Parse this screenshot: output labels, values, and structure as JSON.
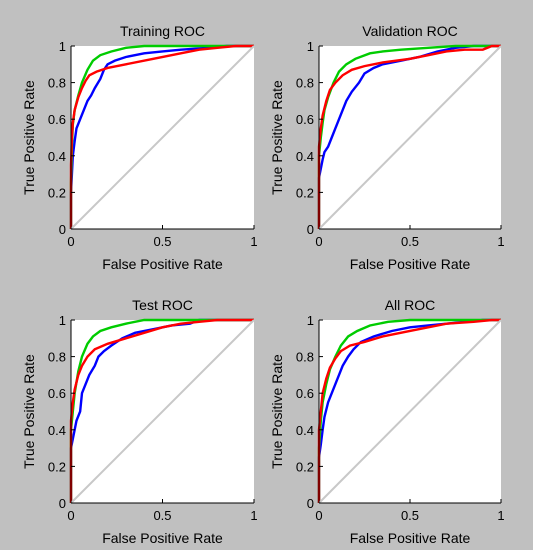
{
  "chart_data": [
    {
      "type": "line",
      "title": "Training ROC",
      "xlabel": "False Positive Rate",
      "ylabel": "True Positive Rate",
      "xlim": [
        0,
        1
      ],
      "ylim": [
        0,
        1
      ],
      "xticks": [
        "0",
        "0.5",
        "1"
      ],
      "yticks": [
        "0",
        "0.2",
        "0.4",
        "0.6",
        "0.8",
        "1"
      ],
      "grid": false,
      "series": [
        {
          "color": "#0000ff",
          "points": [
            [
              0,
              0
            ],
            [
              0,
              0.2
            ],
            [
              0.005,
              0.3
            ],
            [
              0.01,
              0.4
            ],
            [
              0.02,
              0.48
            ],
            [
              0.03,
              0.55
            ],
            [
              0.05,
              0.6
            ],
            [
              0.07,
              0.65
            ],
            [
              0.09,
              0.7
            ],
            [
              0.11,
              0.73
            ],
            [
              0.13,
              0.77
            ],
            [
              0.16,
              0.82
            ],
            [
              0.18,
              0.87
            ],
            [
              0.2,
              0.9
            ],
            [
              0.24,
              0.92
            ],
            [
              0.3,
              0.94
            ],
            [
              0.4,
              0.96
            ],
            [
              0.5,
              0.97
            ],
            [
              0.6,
              0.98
            ],
            [
              0.75,
              0.99
            ],
            [
              0.85,
              1
            ],
            [
              1,
              1
            ]
          ]
        },
        {
          "color": "#00cc00",
          "points": [
            [
              0,
              0
            ],
            [
              0,
              0.25
            ],
            [
              0.005,
              0.45
            ],
            [
              0.01,
              0.57
            ],
            [
              0.02,
              0.65
            ],
            [
              0.04,
              0.73
            ],
            [
              0.06,
              0.8
            ],
            [
              0.09,
              0.87
            ],
            [
              0.12,
              0.92
            ],
            [
              0.16,
              0.95
            ],
            [
              0.22,
              0.97
            ],
            [
              0.3,
              0.99
            ],
            [
              0.4,
              1
            ],
            [
              1,
              1
            ]
          ]
        },
        {
          "color": "#ff0000",
          "points": [
            [
              0,
              0
            ],
            [
              0,
              0.35
            ],
            [
              0.005,
              0.5
            ],
            [
              0.01,
              0.58
            ],
            [
              0.02,
              0.65
            ],
            [
              0.04,
              0.72
            ],
            [
              0.06,
              0.77
            ],
            [
              0.08,
              0.81
            ],
            [
              0.1,
              0.84
            ],
            [
              0.14,
              0.86
            ],
            [
              0.2,
              0.88
            ],
            [
              0.3,
              0.9
            ],
            [
              0.45,
              0.93
            ],
            [
              0.6,
              0.96
            ],
            [
              0.7,
              0.98
            ],
            [
              0.8,
              0.99
            ],
            [
              0.9,
              1
            ],
            [
              1,
              1
            ]
          ]
        },
        {
          "color": "#c8c8c8",
          "points": [
            [
              0,
              0
            ],
            [
              1,
              1
            ]
          ]
        }
      ]
    },
    {
      "type": "line",
      "title": "Validation ROC",
      "xlabel": "False Positive Rate",
      "ylabel": "True Positive Rate",
      "xlim": [
        0,
        1
      ],
      "ylim": [
        0,
        1
      ],
      "xticks": [
        "0",
        "0.5",
        "1"
      ],
      "yticks": [
        "0",
        "0.2",
        "0.4",
        "0.6",
        "0.8",
        "1"
      ],
      "grid": false,
      "series": [
        {
          "color": "#0000ff",
          "points": [
            [
              0,
              0
            ],
            [
              0,
              0.28
            ],
            [
              0.01,
              0.33
            ],
            [
              0.02,
              0.38
            ],
            [
              0.03,
              0.42
            ],
            [
              0.05,
              0.45
            ],
            [
              0.07,
              0.5
            ],
            [
              0.09,
              0.55
            ],
            [
              0.11,
              0.6
            ],
            [
              0.13,
              0.65
            ],
            [
              0.15,
              0.7
            ],
            [
              0.18,
              0.75
            ],
            [
              0.22,
              0.8
            ],
            [
              0.25,
              0.85
            ],
            [
              0.3,
              0.88
            ],
            [
              0.35,
              0.9
            ],
            [
              0.45,
              0.92
            ],
            [
              0.55,
              0.94
            ],
            [
              0.65,
              0.97
            ],
            [
              0.75,
              0.99
            ],
            [
              0.85,
              1
            ],
            [
              1,
              1
            ]
          ]
        },
        {
          "color": "#00cc00",
          "points": [
            [
              0,
              0
            ],
            [
              0,
              0.4
            ],
            [
              0.01,
              0.5
            ],
            [
              0.02,
              0.58
            ],
            [
              0.03,
              0.65
            ],
            [
              0.05,
              0.72
            ],
            [
              0.08,
              0.8
            ],
            [
              0.11,
              0.86
            ],
            [
              0.15,
              0.9
            ],
            [
              0.2,
              0.93
            ],
            [
              0.28,
              0.96
            ],
            [
              0.35,
              0.97
            ],
            [
              0.45,
              0.98
            ],
            [
              0.6,
              0.99
            ],
            [
              0.75,
              1
            ],
            [
              1,
              1
            ]
          ]
        },
        {
          "color": "#ff0000",
          "points": [
            [
              0,
              0
            ],
            [
              0,
              0.45
            ],
            [
              0.01,
              0.55
            ],
            [
              0.02,
              0.62
            ],
            [
              0.04,
              0.7
            ],
            [
              0.06,
              0.76
            ],
            [
              0.09,
              0.8
            ],
            [
              0.13,
              0.84
            ],
            [
              0.18,
              0.87
            ],
            [
              0.25,
              0.89
            ],
            [
              0.35,
              0.91
            ],
            [
              0.5,
              0.93
            ],
            [
              0.6,
              0.95
            ],
            [
              0.7,
              0.97
            ],
            [
              0.8,
              0.98
            ],
            [
              0.9,
              0.98
            ],
            [
              0.95,
              1
            ],
            [
              1,
              1
            ]
          ]
        },
        {
          "color": "#c8c8c8",
          "points": [
            [
              0,
              0
            ],
            [
              1,
              1
            ]
          ]
        }
      ]
    },
    {
      "type": "line",
      "title": "Test ROC",
      "xlabel": "False Positive Rate",
      "ylabel": "True Positive Rate",
      "xlim": [
        0,
        1
      ],
      "ylim": [
        0,
        1
      ],
      "xticks": [
        "0",
        "0.5",
        "1"
      ],
      "yticks": [
        "0",
        "0.2",
        "0.4",
        "0.6",
        "0.8",
        "1"
      ],
      "grid": false,
      "series": [
        {
          "color": "#0000ff",
          "points": [
            [
              0,
              0
            ],
            [
              0,
              0.3
            ],
            [
              0.01,
              0.35
            ],
            [
              0.02,
              0.4
            ],
            [
              0.03,
              0.45
            ],
            [
              0.05,
              0.5
            ],
            [
              0.06,
              0.6
            ],
            [
              0.08,
              0.65
            ],
            [
              0.1,
              0.7
            ],
            [
              0.13,
              0.75
            ],
            [
              0.15,
              0.8
            ],
            [
              0.18,
              0.83
            ],
            [
              0.22,
              0.86
            ],
            [
              0.28,
              0.9
            ],
            [
              0.35,
              0.93
            ],
            [
              0.45,
              0.95
            ],
            [
              0.55,
              0.97
            ],
            [
              0.65,
              0.98
            ],
            [
              0.7,
              1
            ],
            [
              1,
              1
            ]
          ]
        },
        {
          "color": "#00cc00",
          "points": [
            [
              0,
              0
            ],
            [
              0,
              0.4
            ],
            [
              0.01,
              0.5
            ],
            [
              0.02,
              0.6
            ],
            [
              0.04,
              0.72
            ],
            [
              0.06,
              0.8
            ],
            [
              0.09,
              0.87
            ],
            [
              0.12,
              0.91
            ],
            [
              0.16,
              0.94
            ],
            [
              0.22,
              0.96
            ],
            [
              0.3,
              0.98
            ],
            [
              0.4,
              1
            ],
            [
              1,
              1
            ]
          ]
        },
        {
          "color": "#ff0000",
          "points": [
            [
              0,
              0
            ],
            [
              0,
              0.45
            ],
            [
              0.01,
              0.55
            ],
            [
              0.02,
              0.62
            ],
            [
              0.04,
              0.7
            ],
            [
              0.06,
              0.75
            ],
            [
              0.09,
              0.8
            ],
            [
              0.13,
              0.84
            ],
            [
              0.2,
              0.87
            ],
            [
              0.3,
              0.9
            ],
            [
              0.4,
              0.93
            ],
            [
              0.5,
              0.96
            ],
            [
              0.6,
              0.98
            ],
            [
              0.7,
              0.99
            ],
            [
              0.8,
              1
            ],
            [
              1,
              1
            ]
          ]
        },
        {
          "color": "#c8c8c8",
          "points": [
            [
              0,
              0
            ],
            [
              1,
              1
            ]
          ]
        }
      ]
    },
    {
      "type": "line",
      "title": "All ROC",
      "xlabel": "False Positive Rate",
      "ylabel": "True Positive Rate",
      "xlim": [
        0,
        1
      ],
      "ylim": [
        0,
        1
      ],
      "xticks": [
        "0",
        "0.5",
        "1"
      ],
      "yticks": [
        "0",
        "0.2",
        "0.4",
        "0.6",
        "0.8",
        "1"
      ],
      "grid": false,
      "series": [
        {
          "color": "#0000ff",
          "points": [
            [
              0,
              0
            ],
            [
              0,
              0.25
            ],
            [
              0.01,
              0.32
            ],
            [
              0.02,
              0.4
            ],
            [
              0.03,
              0.47
            ],
            [
              0.05,
              0.55
            ],
            [
              0.07,
              0.6
            ],
            [
              0.09,
              0.65
            ],
            [
              0.11,
              0.7
            ],
            [
              0.13,
              0.75
            ],
            [
              0.16,
              0.8
            ],
            [
              0.19,
              0.84
            ],
            [
              0.23,
              0.88
            ],
            [
              0.3,
              0.91
            ],
            [
              0.4,
              0.94
            ],
            [
              0.5,
              0.96
            ],
            [
              0.6,
              0.97
            ],
            [
              0.7,
              0.98
            ],
            [
              0.8,
              0.99
            ],
            [
              0.9,
              1
            ],
            [
              1,
              1
            ]
          ]
        },
        {
          "color": "#00cc00",
          "points": [
            [
              0,
              0
            ],
            [
              0,
              0.3
            ],
            [
              0.01,
              0.45
            ],
            [
              0.02,
              0.55
            ],
            [
              0.04,
              0.65
            ],
            [
              0.06,
              0.73
            ],
            [
              0.09,
              0.8
            ],
            [
              0.12,
              0.86
            ],
            [
              0.16,
              0.91
            ],
            [
              0.21,
              0.94
            ],
            [
              0.28,
              0.97
            ],
            [
              0.38,
              0.99
            ],
            [
              0.5,
              1
            ],
            [
              1,
              1
            ]
          ]
        },
        {
          "color": "#ff0000",
          "points": [
            [
              0,
              0
            ],
            [
              0,
              0.4
            ],
            [
              0.01,
              0.5
            ],
            [
              0.02,
              0.6
            ],
            [
              0.04,
              0.68
            ],
            [
              0.06,
              0.74
            ],
            [
              0.09,
              0.79
            ],
            [
              0.12,
              0.83
            ],
            [
              0.17,
              0.86
            ],
            [
              0.25,
              0.88
            ],
            [
              0.35,
              0.91
            ],
            [
              0.5,
              0.94
            ],
            [
              0.6,
              0.96
            ],
            [
              0.7,
              0.98
            ],
            [
              0.85,
              0.99
            ],
            [
              0.95,
              1
            ],
            [
              1,
              1
            ]
          ]
        },
        {
          "color": "#c8c8c8",
          "points": [
            [
              0,
              0
            ],
            [
              1,
              1
            ]
          ]
        }
      ]
    }
  ]
}
